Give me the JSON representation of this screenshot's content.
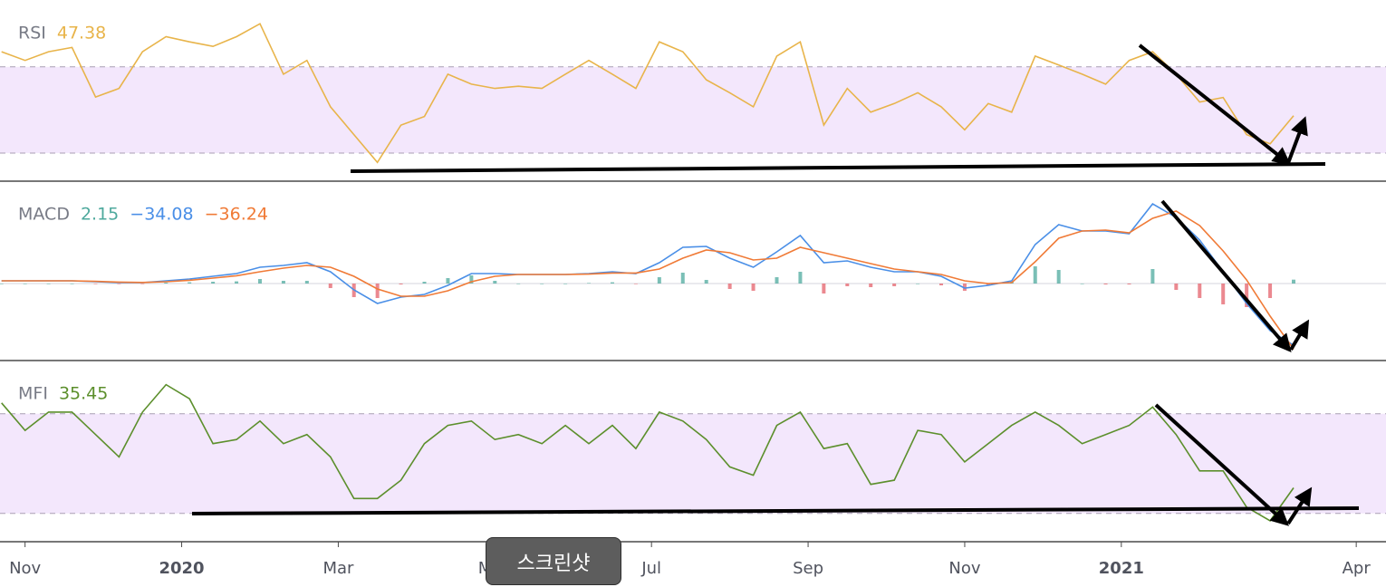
{
  "chart_data": [
    {
      "type": "line",
      "title": "RSI",
      "xlim": [
        0.68,
        18.38
      ],
      "ylim": [
        17,
        101
      ],
      "band": [
        30,
        70
      ],
      "band_color": "#f3e7fc",
      "x": [
        0.7,
        1,
        1.3,
        1.6,
        1.9,
        2.2,
        2.5,
        2.8,
        3.1,
        3.4,
        3.7,
        4,
        4.3,
        4.6,
        4.9,
        5.2,
        5.5,
        5.8,
        6.1,
        6.4,
        6.7,
        7,
        7.3,
        7.6,
        7.9,
        8.2,
        8.5,
        8.8,
        9.1,
        9.4,
        9.7,
        10,
        10.3,
        10.6,
        10.9,
        11.2,
        11.5,
        11.8,
        12.1,
        12.4,
        12.7,
        13,
        13.3,
        13.6,
        13.9,
        14.2,
        14.5,
        14.8,
        15.1,
        15.4,
        15.7,
        16,
        16.3,
        16.6,
        16.9,
        17.2
      ],
      "series": [
        {
          "name": "RSI",
          "color": "#e8b44a",
          "value_label": "47.38",
          "values": [
            77,
            73,
            77,
            79,
            56,
            60,
            77,
            84,
            81.6,
            79.5,
            84,
            90,
            66.6,
            73,
            51.5,
            38.6,
            25.7,
            43,
            47,
            66.6,
            62,
            60,
            61,
            60,
            66.6,
            73,
            66.6,
            60,
            81.6,
            77,
            64,
            58,
            51.5,
            75,
            81.6,
            43,
            60,
            49,
            53,
            58,
            51.5,
            40.8,
            53,
            49,
            75,
            70.9,
            66.6,
            62,
            73,
            77,
            66.6,
            53.7,
            55.8,
            38.6,
            34.3,
            47.38
          ]
        }
      ]
    },
    {
      "type": "line",
      "title": "MACD",
      "xlim": [
        0.68,
        18.38
      ],
      "ylim": [
        -42.5,
        56.5
      ],
      "hlines": [
        0
      ],
      "x": [
        0.7,
        1,
        1.3,
        1.6,
        1.9,
        2.2,
        2.5,
        2.8,
        3.1,
        3.4,
        3.7,
        4,
        4.3,
        4.6,
        4.9,
        5.2,
        5.5,
        5.8,
        6.1,
        6.4,
        6.7,
        7,
        7.3,
        7.6,
        7.9,
        8.2,
        8.5,
        8.8,
        9.1,
        9.4,
        9.7,
        10,
        10.3,
        10.6,
        10.9,
        11.2,
        11.5,
        11.8,
        12.1,
        12.4,
        12.7,
        13,
        13.3,
        13.6,
        13.9,
        14.2,
        14.5,
        14.8,
        15.1,
        15.4,
        15.7,
        16,
        16.3,
        16.6,
        16.9,
        17.2
      ],
      "series": [
        {
          "name": "Histogram",
          "type": "bar",
          "color": "#4ea99d",
          "negative_color": "#e4616b",
          "value_label": "2.15",
          "values": [
            0,
            0,
            0,
            0,
            -0.2,
            -0.3,
            -0.1,
            0.5,
            0.7,
            1,
            1.2,
            2.5,
            1.5,
            1.5,
            -2.5,
            -7.5,
            -8,
            -0.5,
            1,
            3,
            4.5,
            1.5,
            0,
            0,
            0,
            0.3,
            0.7,
            -0.3,
            3.5,
            6,
            2,
            -3,
            -4,
            3.5,
            6.5,
            -5.5,
            -1.5,
            -2,
            -1.5,
            0,
            -1,
            -4,
            -1,
            1,
            9.5,
            7.5,
            0,
            -0.5,
            -0.5,
            8,
            -3.5,
            -8,
            -11.5,
            -13,
            -8,
            2.15
          ]
        },
        {
          "name": "MACD",
          "color": "#4a8fe7",
          "value_label": "−34.08",
          "values": [
            1.5,
            1.5,
            1.5,
            1.5,
            1,
            0.5,
            0.5,
            1.5,
            2.5,
            4,
            5.5,
            9,
            10,
            11.5,
            6.5,
            -3.5,
            -11,
            -7.5,
            -6,
            -1,
            5.5,
            5.5,
            5,
            5,
            5,
            5.5,
            6.5,
            5.5,
            11.5,
            20,
            20.5,
            14,
            9,
            17.5,
            26.5,
            11.5,
            12.5,
            9,
            6.5,
            6.5,
            4,
            -2.5,
            -1,
            1.5,
            21.5,
            32.5,
            29,
            29,
            27.5,
            44,
            36.5,
            24,
            6.5,
            -11,
            -26,
            -34.08
          ]
        },
        {
          "name": "Signal",
          "color": "#f07a36",
          "value_label": "−36.24",
          "values": [
            1.5,
            1.5,
            1.5,
            1.5,
            1.2,
            0.8,
            0.6,
            1,
            1.8,
            3,
            4.3,
            6.5,
            8.5,
            10,
            9,
            4,
            -3,
            -7,
            -7,
            -4,
            1,
            4,
            5,
            5,
            5,
            5.2,
            5.8,
            5.8,
            8,
            14,
            18.5,
            17,
            13,
            14,
            20,
            17,
            14,
            11,
            8,
            6.5,
            5,
            1.5,
            0,
            0.5,
            12,
            25,
            29,
            29.5,
            28,
            36,
            40,
            32,
            18,
            2,
            -18,
            -36.24
          ]
        }
      ]
    },
    {
      "type": "line",
      "title": "MFI",
      "xlim": [
        0.68,
        18.38
      ],
      "ylim": [
        3,
        112
      ],
      "band": [
        20,
        80
      ],
      "band_color": "#f3e7fc",
      "x": [
        0.7,
        1,
        1.3,
        1.6,
        1.9,
        2.2,
        2.5,
        2.8,
        3.1,
        3.4,
        3.7,
        4,
        4.3,
        4.6,
        4.9,
        5.2,
        5.5,
        5.8,
        6.1,
        6.4,
        6.7,
        7,
        7.3,
        7.6,
        7.9,
        8.2,
        8.5,
        8.8,
        9.1,
        9.4,
        9.7,
        10,
        10.3,
        10.6,
        10.9,
        11.2,
        11.5,
        11.8,
        12.1,
        12.4,
        12.7,
        13,
        13.3,
        13.6,
        13.9,
        14.2,
        14.5,
        14.8,
        15.1,
        15.4,
        15.7,
        16,
        16.3,
        16.6,
        16.9,
        17.2
      ],
      "xticks": [
        {
          "value": 1,
          "label": "Nov"
        },
        {
          "value": 3,
          "label": "2020"
        },
        {
          "value": 5,
          "label": "Mar"
        },
        {
          "value": 7,
          "label": "May"
        },
        {
          "value": 9,
          "label": "Jul"
        },
        {
          "value": 11,
          "label": "Sep"
        },
        {
          "value": 13,
          "label": "Nov"
        },
        {
          "value": 15,
          "label": "2021"
        },
        {
          "value": 18,
          "label": "Apr"
        }
      ],
      "series": [
        {
          "name": "MFI",
          "color": "#5c8f2c",
          "value_label": "35.45",
          "values": [
            86.5,
            70,
            81,
            81,
            67.5,
            54,
            81,
            97.5,
            89,
            62,
            64.5,
            75.6,
            62,
            67.5,
            54,
            29,
            29,
            40,
            62,
            73,
            75.6,
            64.5,
            67.5,
            62,
            73,
            62,
            73,
            59,
            81,
            75.6,
            64.5,
            48,
            43,
            73,
            81,
            59,
            62,
            37.5,
            40,
            70,
            67.5,
            51,
            62,
            73,
            81,
            73,
            62,
            67.5,
            73,
            84,
            67.5,
            45.6,
            45.6,
            23.8,
            15.6,
            35.45
          ]
        }
      ]
    }
  ],
  "tooltip": "스크린샷"
}
